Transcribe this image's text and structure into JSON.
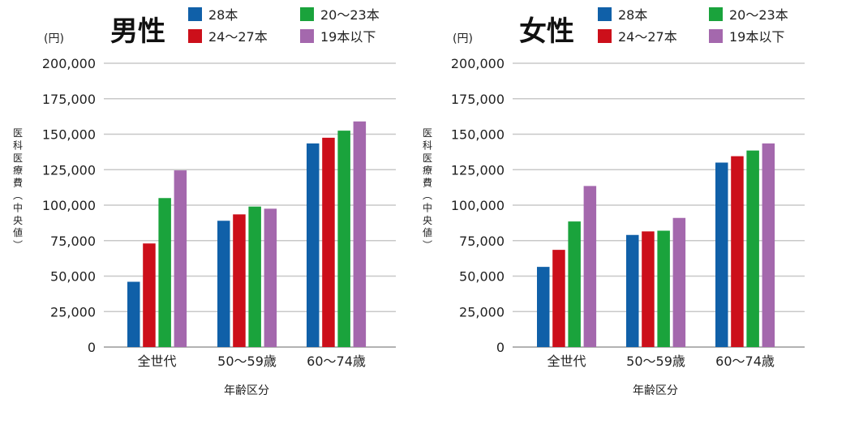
{
  "colors": {
    "series": [
      "#1060a8",
      "#cc0f1a",
      "#1aa33c",
      "#a468ad"
    ],
    "grid": "#c8c8c8",
    "axis": "#9a9a9a",
    "text": "#222222"
  },
  "chart_data": [
    {
      "type": "bar",
      "title": "男性",
      "unit_label": "(円)",
      "ylabel": "医科医療費（中央値）",
      "xlabel": "年齢区分",
      "categories": [
        "全世代",
        "50～59歳",
        "60～74歳"
      ],
      "ylim": [
        0,
        200000
      ],
      "yticks": [
        0,
        25000,
        50000,
        75000,
        100000,
        125000,
        150000,
        175000,
        200000
      ],
      "ytick_labels": [
        "0",
        "25,000",
        "50,000",
        "75,000",
        "100,000",
        "125,000",
        "150,000",
        "175,000",
        "200,000"
      ],
      "grid": true,
      "legend_position": "top",
      "series": [
        {
          "name": "28本",
          "values": [
            46000,
            89000,
            143500
          ]
        },
        {
          "name": "24～27本",
          "values": [
            73000,
            93500,
            147500
          ]
        },
        {
          "name": "20～23本",
          "values": [
            105000,
            99000,
            152500
          ]
        },
        {
          "name": "19本以下",
          "values": [
            124500,
            97500,
            159000
          ]
        }
      ]
    },
    {
      "type": "bar",
      "title": "女性",
      "unit_label": "(円)",
      "ylabel": "医科医療費（中央値）",
      "xlabel": "年齢区分",
      "categories": [
        "全世代",
        "50～59歳",
        "60～74歳"
      ],
      "ylim": [
        0,
        200000
      ],
      "yticks": [
        0,
        25000,
        50000,
        75000,
        100000,
        125000,
        150000,
        175000,
        200000
      ],
      "ytick_labels": [
        "0",
        "25,000",
        "50,000",
        "75,000",
        "100,000",
        "125,000",
        "150,000",
        "175,000",
        "200,000"
      ],
      "grid": true,
      "legend_position": "top",
      "series": [
        {
          "name": "28本",
          "values": [
            56500,
            79000,
            130000
          ]
        },
        {
          "name": "24～27本",
          "values": [
            68500,
            81500,
            134500
          ]
        },
        {
          "name": "20～23本",
          "values": [
            88500,
            82000,
            138500
          ]
        },
        {
          "name": "19本以下",
          "values": [
            113500,
            91000,
            143500
          ]
        }
      ]
    }
  ]
}
